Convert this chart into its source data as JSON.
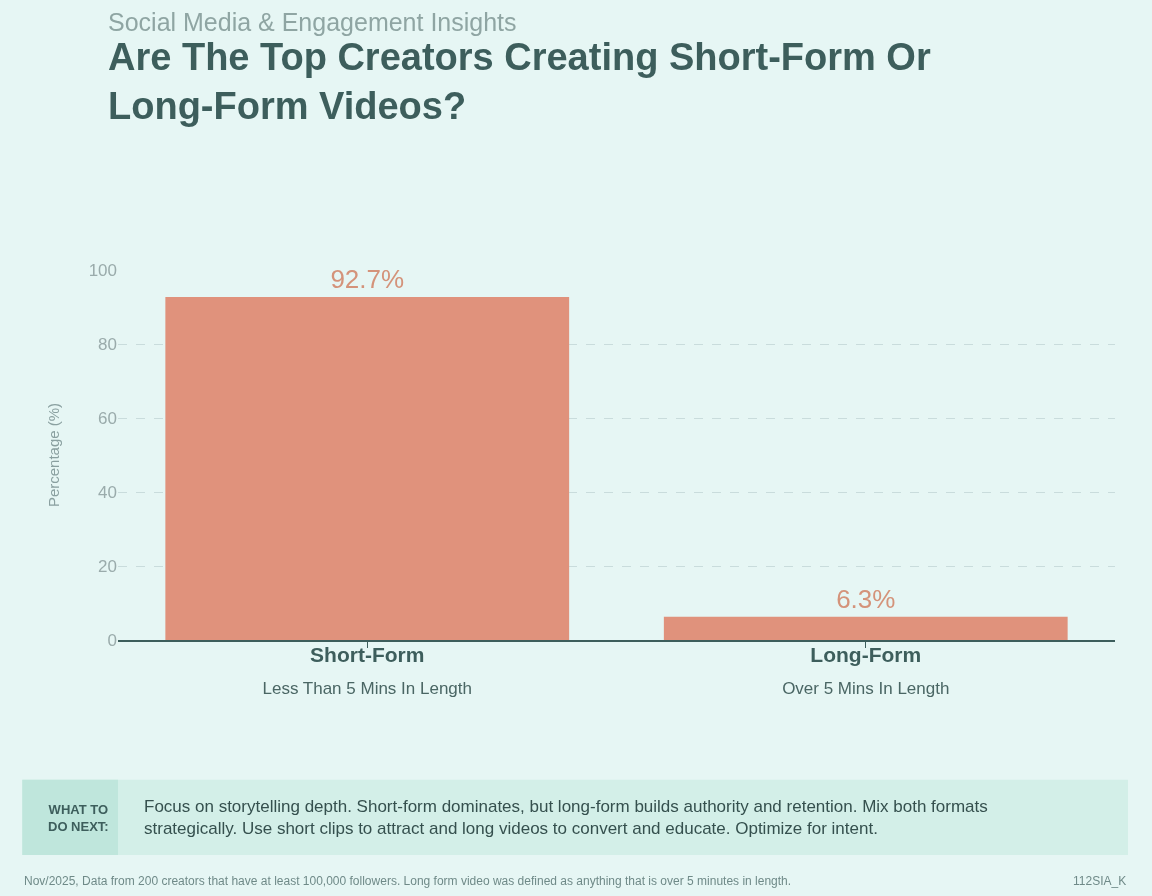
{
  "chart_data": {
    "type": "bar",
    "subtitle": "Social Media & Engagement Insights",
    "title": "Are The Top Creators Creating Short-Form Or\nLong-Form Videos?",
    "ylabel": "Percentage (%)",
    "categories": [
      "Short-Form\nLess Than 5 Mins In Length",
      "Long-Form\nOver 5 Mins In Length"
    ],
    "values": [
      92.7,
      6.3
    ],
    "value_labels": [
      "92.7%",
      "6.3%"
    ],
    "color": "#e0927c",
    "ylim": [
      0,
      100
    ],
    "yticks": [
      0,
      20,
      40,
      60,
      80,
      100
    ],
    "grid": "y",
    "legend": false,
    "annotations": [
      "WHAT TO\nDO NEXT:",
      "Focus on storytelling depth. Short-form dominates, but long-form builds authority and retention. Mix both formats\nstrategically. Use short clips to attract and long videos to convert and educate. Optimize for intent.",
      "Nov/2025, Data from 200 creators that have at least 100,000 followers. Long form video was defined as anything that is over 5 minutes in length.",
      "112SIA_K"
    ]
  }
}
